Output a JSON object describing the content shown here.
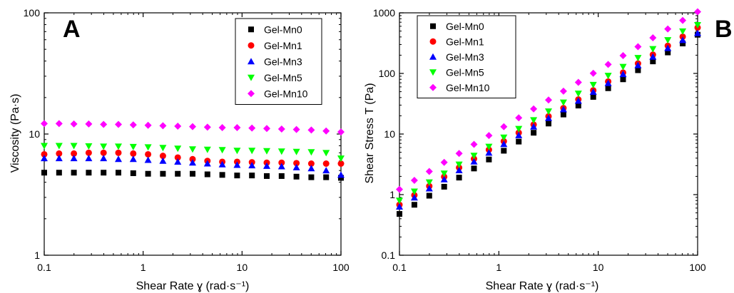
{
  "chart_data": [
    {
      "type": "scatter",
      "panel_label": "A",
      "xlabel": "Shear Rate ɣ (rad·s⁻¹)",
      "ylabel": "Viscosity (Pa·s)",
      "xscale": "log",
      "yscale": "log",
      "xlim": [
        0.1,
        100
      ],
      "ylim": [
        1,
        100
      ],
      "xticks": [
        "0.1",
        "1",
        "10",
        "100"
      ],
      "yticks": [
        "1",
        "10",
        "100"
      ],
      "grid": false,
      "legend_position": "top-right",
      "x": [
        0.1,
        0.1413,
        0.1995,
        0.2818,
        0.3981,
        0.5623,
        0.7943,
        1.122,
        1.585,
        2.239,
        3.162,
        4.467,
        6.31,
        8.913,
        12.59,
        17.78,
        25.12,
        35.48,
        50.12,
        70.79,
        100
      ],
      "series": [
        {
          "name": "Gel-Mn0",
          "color": "#000000",
          "marker": "square",
          "values": [
            4.8,
            4.8,
            4.8,
            4.8,
            4.8,
            4.8,
            4.75,
            4.7,
            4.7,
            4.7,
            4.7,
            4.65,
            4.6,
            4.55,
            4.55,
            4.5,
            4.5,
            4.45,
            4.4,
            4.4,
            4.35
          ]
        },
        {
          "name": "Gel-Mn1",
          "color": "#ff0000",
          "marker": "circle",
          "values": [
            6.8,
            6.9,
            6.9,
            7.0,
            7.0,
            7.0,
            6.9,
            6.8,
            6.6,
            6.4,
            6.2,
            6.0,
            5.9,
            5.9,
            5.85,
            5.8,
            5.8,
            5.75,
            5.7,
            5.7,
            5.7
          ]
        },
        {
          "name": "Gel-Mn3",
          "color": "#0000ff",
          "marker": "triangle-up",
          "values": [
            6.3,
            6.3,
            6.3,
            6.3,
            6.3,
            6.2,
            6.2,
            6.1,
            6.0,
            5.9,
            5.8,
            5.7,
            5.6,
            5.55,
            5.5,
            5.45,
            5.4,
            5.3,
            5.2,
            5.0,
            4.6
          ]
        },
        {
          "name": "Gel-Mn5",
          "color": "#00ff00",
          "marker": "triangle-down",
          "values": [
            8.0,
            8.0,
            8.0,
            7.95,
            7.9,
            7.9,
            7.85,
            7.8,
            7.7,
            7.6,
            7.5,
            7.45,
            7.4,
            7.3,
            7.3,
            7.25,
            7.2,
            7.15,
            7.1,
            7.0,
            6.3
          ]
        },
        {
          "name": "Gel-Mn10",
          "color": "#ff00ff",
          "marker": "diamond",
          "values": [
            12.2,
            12.2,
            12.1,
            12.1,
            12.0,
            12.0,
            11.9,
            11.8,
            11.7,
            11.6,
            11.5,
            11.4,
            11.3,
            11.3,
            11.2,
            11.1,
            11.0,
            10.9,
            10.8,
            10.6,
            10.4
          ]
        }
      ]
    },
    {
      "type": "scatter",
      "panel_label": "B",
      "xlabel": "Shear Rate ɣ (rad·s⁻¹)",
      "ylabel": "Shear Stress Τ (Pa)",
      "xscale": "log",
      "yscale": "log",
      "xlim": [
        0.1,
        100
      ],
      "ylim": [
        0.1,
        1000
      ],
      "xticks": [
        "0.1",
        "1",
        "10",
        "100"
      ],
      "yticks": [
        "0.1",
        "1",
        "10",
        "100",
        "1000"
      ],
      "grid": false,
      "legend_position": "top-left",
      "x": [
        0.1,
        0.1413,
        0.1995,
        0.2818,
        0.3981,
        0.5623,
        0.7943,
        1.122,
        1.585,
        2.239,
        3.162,
        4.467,
        6.31,
        8.913,
        12.59,
        17.78,
        25.12,
        35.48,
        50.12,
        70.79,
        100
      ],
      "series": [
        {
          "name": "Gel-Mn0",
          "color": "#000000",
          "marker": "square",
          "values": [
            0.48,
            0.68,
            0.96,
            1.35,
            1.91,
            2.7,
            3.8,
            5.3,
            7.5,
            10.5,
            14.9,
            21,
            29.5,
            41,
            57,
            80,
            113,
            158,
            222,
            312,
            435
          ]
        },
        {
          "name": "Gel-Mn1",
          "color": "#ff0000",
          "marker": "circle",
          "values": [
            0.68,
            0.98,
            1.38,
            1.97,
            2.79,
            3.9,
            5.5,
            7.6,
            10.5,
            14.3,
            19.6,
            26.8,
            37.2,
            52.6,
            73.6,
            103,
            146,
            204,
            286,
            404,
            570
          ]
        },
        {
          "name": "Gel-Mn3",
          "color": "#0000ff",
          "marker": "triangle-up",
          "values": [
            0.63,
            0.89,
            1.26,
            1.78,
            2.51,
            3.5,
            4.9,
            6.8,
            9.5,
            13.2,
            18.3,
            25.5,
            35.3,
            49.5,
            69,
            97,
            136,
            188,
            261,
            354,
            460
          ]
        },
        {
          "name": "Gel-Mn5",
          "color": "#00ff00",
          "marker": "triangle-down",
          "values": [
            0.8,
            1.13,
            1.6,
            2.24,
            3.15,
            4.4,
            6.2,
            8.8,
            12.2,
            17,
            23.7,
            33.3,
            46.7,
            65,
            92,
            129,
            181,
            254,
            356,
            496,
            630
          ]
        },
        {
          "name": "Gel-Mn10",
          "color": "#ff00ff",
          "marker": "diamond",
          "values": [
            1.22,
            1.72,
            2.41,
            3.41,
            4.78,
            6.75,
            9.45,
            13.2,
            18.5,
            26,
            36.4,
            50.9,
            71.3,
            100.7,
            141,
            197,
            276,
            387,
            541,
            750,
            1040
          ]
        }
      ]
    }
  ]
}
